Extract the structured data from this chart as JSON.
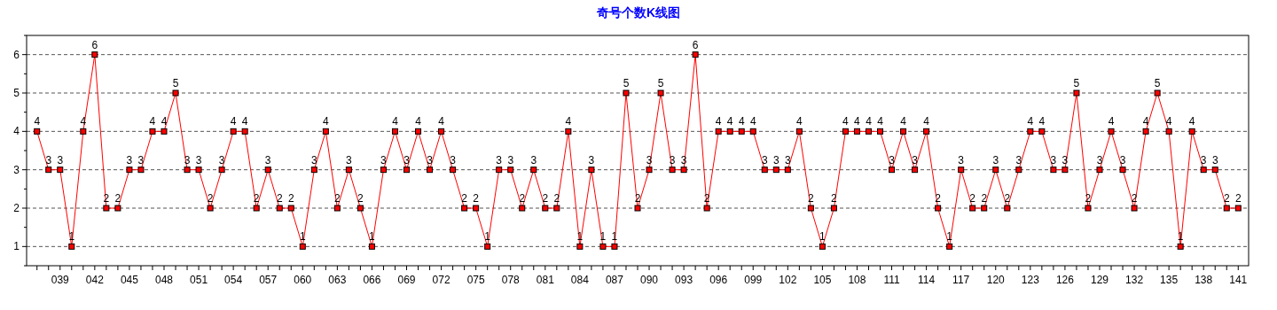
{
  "chart_data": {
    "type": "line",
    "title": "奇号个数K线图",
    "categories": [
      null,
      null,
      "039",
      null,
      null,
      "042",
      null,
      null,
      "045",
      null,
      null,
      "048",
      null,
      null,
      "051",
      null,
      null,
      "054",
      null,
      null,
      "057",
      null,
      null,
      "060",
      null,
      null,
      "063",
      null,
      null,
      "066",
      null,
      null,
      "069",
      null,
      null,
      "072",
      null,
      null,
      "075",
      null,
      null,
      "078",
      null,
      null,
      "081",
      null,
      null,
      "084",
      null,
      null,
      "087",
      null,
      null,
      "090",
      null,
      null,
      "093",
      null,
      null,
      "096",
      null,
      null,
      "099",
      null,
      null,
      "102",
      null,
      null,
      "105",
      null,
      null,
      "108",
      null,
      null,
      "111",
      null,
      null,
      "114",
      null,
      null,
      "117",
      null,
      null,
      "120",
      null,
      null,
      "123",
      null,
      null,
      "126",
      null,
      null,
      "129",
      null,
      null,
      "132",
      null,
      null,
      "135",
      null,
      null,
      "138",
      null,
      null,
      "141"
    ],
    "series": [
      {
        "color": "#ff0000",
        "values": [
          4,
          3,
          3,
          1,
          4,
          6,
          2,
          2,
          3,
          3,
          4,
          4,
          5,
          3,
          3,
          2,
          3,
          4,
          4,
          2,
          3,
          2,
          2,
          1,
          3,
          4,
          2,
          3,
          2,
          1,
          3,
          4,
          3,
          4,
          3,
          4,
          3,
          2,
          2,
          1,
          3,
          3,
          2,
          3,
          2,
          2,
          4,
          1,
          3,
          1,
          1,
          5,
          2,
          3,
          5,
          3,
          3,
          6,
          2,
          4,
          4,
          4,
          4,
          3,
          3,
          3,
          4,
          2,
          1,
          2,
          4,
          4,
          4,
          4,
          3,
          4,
          3,
          4,
          2,
          1,
          3,
          2,
          2,
          3,
          2,
          3,
          4,
          4,
          3,
          3,
          5,
          2,
          3,
          4,
          3,
          2,
          4,
          5,
          4,
          1,
          4,
          3,
          3,
          2,
          2
        ]
      }
    ],
    "ylim": [
      0.5,
      6.5
    ],
    "yticks": [
      {
        "value": 0.5,
        "label": null
      },
      1,
      {
        "value": 1.5,
        "label": null
      },
      2,
      {
        "value": 2.5,
        "label": null
      },
      3,
      {
        "value": 3.5,
        "label": null
      },
      4,
      {
        "value": 4.5,
        "label": null
      },
      5,
      {
        "value": 5.5,
        "label": null
      },
      6,
      {
        "value": 6.5,
        "label": null
      }
    ],
    "grid": "y",
    "marker": "square",
    "line_style": "solid",
    "data_labels": true
  }
}
